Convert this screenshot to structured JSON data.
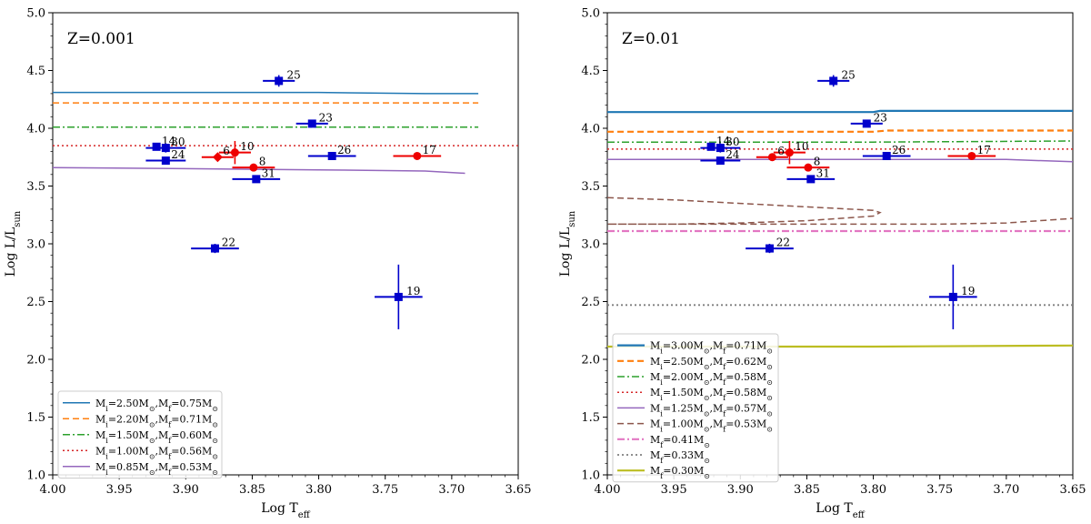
{
  "chart_data": [
    {
      "type": "scatter",
      "title": "Z=0.001",
      "xlabel_main": "Log T",
      "xlabel_sub": "eff",
      "ylabel_main": "Log L/L",
      "ylabel_sub": "sun",
      "xlim": [
        4.0,
        3.65
      ],
      "ylim": [
        1.0,
        5.0
      ],
      "xticks": [
        4.0,
        3.95,
        3.9,
        3.85,
        3.8,
        3.75,
        3.7,
        3.65
      ],
      "xtick_labels": [
        "4.00",
        "3.95",
        "3.90",
        "3.85",
        "3.80",
        "3.75",
        "3.70",
        "3.65"
      ],
      "yticks": [
        1.0,
        1.5,
        2.0,
        2.5,
        3.0,
        3.5,
        4.0,
        4.5,
        5.0
      ],
      "ytick_labels": [
        "1.0",
        "1.5",
        "2.0",
        "2.5",
        "3.0",
        "3.5",
        "4.0",
        "4.5",
        "5.0"
      ],
      "grid": false,
      "legend_position": "lower-left",
      "tracks": [
        {
          "name": "M_i=2.50M_⊙,M_f=0.75M_⊙",
          "color": "#1f77b4",
          "dash": "solid",
          "width": 1.5,
          "x": [
            4.0,
            3.8,
            3.72,
            3.68
          ],
          "y": [
            4.31,
            4.31,
            4.3,
            4.3
          ]
        },
        {
          "name": "M_i=2.20M_⊙,M_f=0.71M_⊙",
          "color": "#ff7f0e",
          "dash": "dashed",
          "width": 1.5,
          "x": [
            4.0,
            3.8,
            3.68
          ],
          "y": [
            4.22,
            4.22,
            4.22
          ]
        },
        {
          "name": "M_i=1.50M_⊙,M_f=0.60M_⊙",
          "color": "#2ca02c",
          "dash": "dashdot",
          "width": 1.5,
          "x": [
            4.0,
            3.8,
            3.68
          ],
          "y": [
            4.01,
            4.01,
            4.01
          ]
        },
        {
          "name": "M_i=1.00M_⊙,M_f=0.56M_⊙",
          "color": "#d62728",
          "dash": "dotted",
          "width": 1.5,
          "x": [
            4.0,
            3.8,
            3.65
          ],
          "y": [
            3.85,
            3.85,
            3.85
          ]
        },
        {
          "name": "M_i=0.85M_⊙,M_f=0.53M_⊙",
          "color": "#9467bd",
          "dash": "solid",
          "width": 1.5,
          "x": [
            4.0,
            3.9,
            3.8,
            3.72,
            3.69
          ],
          "y": [
            3.66,
            3.65,
            3.64,
            3.63,
            3.61
          ]
        }
      ],
      "points": [
        {
          "label": "25",
          "x": 3.83,
          "y": 4.41,
          "xerr": 0.012,
          "yerr": 0.05,
          "color": "#0000cc",
          "marker": "square",
          "label_dx": 0.006,
          "label_dy": 0.02
        },
        {
          "label": "23",
          "x": 3.805,
          "y": 4.04,
          "xerr": 0.012,
          "yerr": 0.02,
          "color": "#0000cc",
          "marker": "square",
          "label_dx": 0.005,
          "label_dy": 0.02
        },
        {
          "label": "14",
          "x": 3.922,
          "y": 3.84,
          "xerr": 0.0,
          "yerr": 0.03,
          "color": "#0000cc",
          "marker": "square",
          "label_dx": 0.004,
          "label_dy": 0.02
        },
        {
          "label": "30",
          "x": 3.915,
          "y": 3.83,
          "xerr": 0.015,
          "yerr": 0.04,
          "color": "#0000cc",
          "marker": "square",
          "label_dx": 0.004,
          "label_dy": 0.02
        },
        {
          "label": "24",
          "x": 3.915,
          "y": 3.72,
          "xerr": 0.015,
          "yerr": 0.02,
          "color": "#0000cc",
          "marker": "square",
          "label_dx": 0.004,
          "label_dy": 0.02
        },
        {
          "label": "26",
          "x": 3.79,
          "y": 3.76,
          "xerr": 0.018,
          "yerr": 0.03,
          "color": "#0000cc",
          "marker": "square",
          "label_dx": 0.004,
          "label_dy": 0.02
        },
        {
          "label": "31",
          "x": 3.847,
          "y": 3.56,
          "xerr": 0.018,
          "yerr": 0.03,
          "color": "#0000cc",
          "marker": "square",
          "label_dx": 0.004,
          "label_dy": 0.02
        },
        {
          "label": "22",
          "x": 3.878,
          "y": 2.96,
          "xerr": 0.018,
          "yerr": 0.04,
          "color": "#0000cc",
          "marker": "square",
          "label_dx": 0.005,
          "label_dy": 0.02
        },
        {
          "label": "19",
          "x": 3.74,
          "y": 2.54,
          "xerr": 0.018,
          "yerr": 0.28,
          "color": "#0000cc",
          "marker": "square",
          "label_dx": 0.006,
          "label_dy": 0.02
        },
        {
          "label": "10",
          "x": 3.863,
          "y": 3.79,
          "xerr": 0.012,
          "yerr": 0.1,
          "color": "#ee0000",
          "marker": "circle",
          "label_dx": 0.004,
          "label_dy": 0.02
        },
        {
          "label": "6",
          "x": 3.876,
          "y": 3.75,
          "xerr": 0.012,
          "yerr": 0.02,
          "color": "#ee0000",
          "marker": "diamond",
          "label_dx": 0.004,
          "label_dy": 0.02
        },
        {
          "label": "8",
          "x": 3.849,
          "y": 3.66,
          "xerr": 0.016,
          "yerr": 0.03,
          "color": "#ee0000",
          "marker": "circle",
          "label_dx": 0.004,
          "label_dy": 0.02
        },
        {
          "label": "17",
          "x": 3.726,
          "y": 3.76,
          "xerr": 0.018,
          "yerr": 0.02,
          "color": "#ee0000",
          "marker": "circle",
          "label_dx": 0.004,
          "label_dy": 0.02
        }
      ]
    },
    {
      "type": "scatter",
      "title": "Z=0.01",
      "xlabel_main": "Log T",
      "xlabel_sub": "eff",
      "ylabel_main": "Log L/L",
      "ylabel_sub": "sun",
      "xlim": [
        4.0,
        3.65
      ],
      "ylim": [
        1.0,
        5.0
      ],
      "xticks": [
        4.0,
        3.95,
        3.9,
        3.85,
        3.8,
        3.75,
        3.7,
        3.65
      ],
      "xtick_labels": [
        "4.00",
        "3.95",
        "3.90",
        "3.85",
        "3.80",
        "3.75",
        "3.70",
        "3.65"
      ],
      "yticks": [
        1.0,
        1.5,
        2.0,
        2.5,
        3.0,
        3.5,
        4.0,
        4.5,
        5.0
      ],
      "ytick_labels": [
        "1.0",
        "1.5",
        "2.0",
        "2.5",
        "3.0",
        "3.5",
        "4.0",
        "4.5",
        "5.0"
      ],
      "grid": false,
      "legend_position": "lower-left",
      "tracks": [
        {
          "name": "M_i=3.00M_⊙,M_f=0.71M_⊙",
          "color": "#1f77b4",
          "dash": "solid",
          "width": 2.2,
          "x": [
            4.0,
            3.8,
            3.795,
            3.65
          ],
          "y": [
            4.14,
            4.14,
            4.15,
            4.15
          ]
        },
        {
          "name": "M_i=2.50M_⊙,M_f=0.62M_⊙",
          "color": "#ff7f0e",
          "dash": "dashed",
          "width": 2.2,
          "x": [
            4.0,
            3.8,
            3.79,
            3.65
          ],
          "y": [
            3.97,
            3.97,
            3.98,
            3.98
          ]
        },
        {
          "name": "M_i=2.00M_⊙,M_f=0.58M_⊙",
          "color": "#2ca02c",
          "dash": "dashdot",
          "width": 1.5,
          "x": [
            4.0,
            3.8,
            3.65
          ],
          "y": [
            3.88,
            3.88,
            3.89
          ]
        },
        {
          "name": "M_i=1.50M_⊙,M_f=0.58M_⊙",
          "color": "#d62728",
          "dash": "dotted",
          "width": 1.5,
          "x": [
            4.0,
            3.8,
            3.65
          ],
          "y": [
            3.82,
            3.82,
            3.82
          ]
        },
        {
          "name": "M_i=1.25M_⊙,M_f=0.57M_⊙",
          "color": "#9467bd",
          "dash": "solid",
          "width": 1.5,
          "x": [
            4.0,
            3.85,
            3.75,
            3.7,
            3.65
          ],
          "y": [
            3.73,
            3.73,
            3.73,
            3.73,
            3.71
          ]
        },
        {
          "name": "M_i=1.00M_⊙,M_f=0.53M_⊙",
          "color": "#8c564b",
          "dash": "dashed",
          "width": 1.5,
          "x": [
            4.0,
            3.95,
            3.9,
            3.85,
            3.8,
            3.795,
            3.8,
            3.85,
            3.9,
            3.95,
            4.0,
            3.9,
            3.8,
            3.75,
            3.7,
            3.65
          ],
          "y": [
            3.4,
            3.38,
            3.35,
            3.32,
            3.29,
            3.27,
            3.24,
            3.2,
            3.18,
            3.17,
            3.17,
            3.17,
            3.17,
            3.17,
            3.18,
            3.22
          ]
        },
        {
          "name": "M_f=0.41M_⊙",
          "color": "#e377c2",
          "dash": "dashdot",
          "width": 2.2,
          "x": [
            4.0,
            3.8,
            3.65
          ],
          "y": [
            3.11,
            3.11,
            3.11
          ]
        },
        {
          "name": "M_f=0.33M_⊙",
          "color": "#7f7f7f",
          "dash": "dotted",
          "width": 1.8,
          "x": [
            4.0,
            3.8,
            3.65
          ],
          "y": [
            2.47,
            2.47,
            2.47
          ]
        },
        {
          "name": "M_f=0.30M_⊙",
          "color": "#bcbd22",
          "dash": "solid",
          "width": 2.2,
          "x": [
            4.0,
            3.8,
            3.65
          ],
          "y": [
            2.11,
            2.11,
            2.12
          ]
        }
      ],
      "points": [
        {
          "label": "25",
          "x": 3.83,
          "y": 4.41,
          "xerr": 0.012,
          "yerr": 0.05,
          "color": "#0000cc",
          "marker": "square",
          "label_dx": 0.006,
          "label_dy": 0.02
        },
        {
          "label": "23",
          "x": 3.805,
          "y": 4.04,
          "xerr": 0.012,
          "yerr": 0.02,
          "color": "#0000cc",
          "marker": "square",
          "label_dx": 0.005,
          "label_dy": 0.02
        },
        {
          "label": "14",
          "x": 3.922,
          "y": 3.84,
          "xerr": 0.0,
          "yerr": 0.03,
          "color": "#0000cc",
          "marker": "square",
          "label_dx": 0.004,
          "label_dy": 0.02
        },
        {
          "label": "30",
          "x": 3.915,
          "y": 3.83,
          "xerr": 0.015,
          "yerr": 0.04,
          "color": "#0000cc",
          "marker": "square",
          "label_dx": 0.004,
          "label_dy": 0.02
        },
        {
          "label": "24",
          "x": 3.915,
          "y": 3.72,
          "xerr": 0.015,
          "yerr": 0.02,
          "color": "#0000cc",
          "marker": "square",
          "label_dx": 0.004,
          "label_dy": 0.02
        },
        {
          "label": "26",
          "x": 3.79,
          "y": 3.76,
          "xerr": 0.018,
          "yerr": 0.03,
          "color": "#0000cc",
          "marker": "square",
          "label_dx": 0.004,
          "label_dy": 0.02
        },
        {
          "label": "31",
          "x": 3.847,
          "y": 3.56,
          "xerr": 0.018,
          "yerr": 0.03,
          "color": "#0000cc",
          "marker": "square",
          "label_dx": 0.004,
          "label_dy": 0.02
        },
        {
          "label": "22",
          "x": 3.878,
          "y": 2.96,
          "xerr": 0.018,
          "yerr": 0.04,
          "color": "#0000cc",
          "marker": "square",
          "label_dx": 0.005,
          "label_dy": 0.02
        },
        {
          "label": "19",
          "x": 3.74,
          "y": 2.54,
          "xerr": 0.018,
          "yerr": 0.28,
          "color": "#0000cc",
          "marker": "square",
          "label_dx": 0.006,
          "label_dy": 0.02
        },
        {
          "label": "10",
          "x": 3.863,
          "y": 3.79,
          "xerr": 0.012,
          "yerr": 0.1,
          "color": "#ee0000",
          "marker": "circle",
          "label_dx": 0.004,
          "label_dy": 0.02
        },
        {
          "label": "6",
          "x": 3.876,
          "y": 3.75,
          "xerr": 0.012,
          "yerr": 0.02,
          "color": "#ee0000",
          "marker": "circle",
          "label_dx": 0.004,
          "label_dy": 0.02
        },
        {
          "label": "8",
          "x": 3.849,
          "y": 3.66,
          "xerr": 0.016,
          "yerr": 0.03,
          "color": "#ee0000",
          "marker": "circle",
          "label_dx": 0.004,
          "label_dy": 0.02
        },
        {
          "label": "17",
          "x": 3.726,
          "y": 3.76,
          "xerr": 0.018,
          "yerr": 0.02,
          "color": "#ee0000",
          "marker": "circle",
          "label_dx": 0.004,
          "label_dy": 0.02
        }
      ]
    }
  ]
}
